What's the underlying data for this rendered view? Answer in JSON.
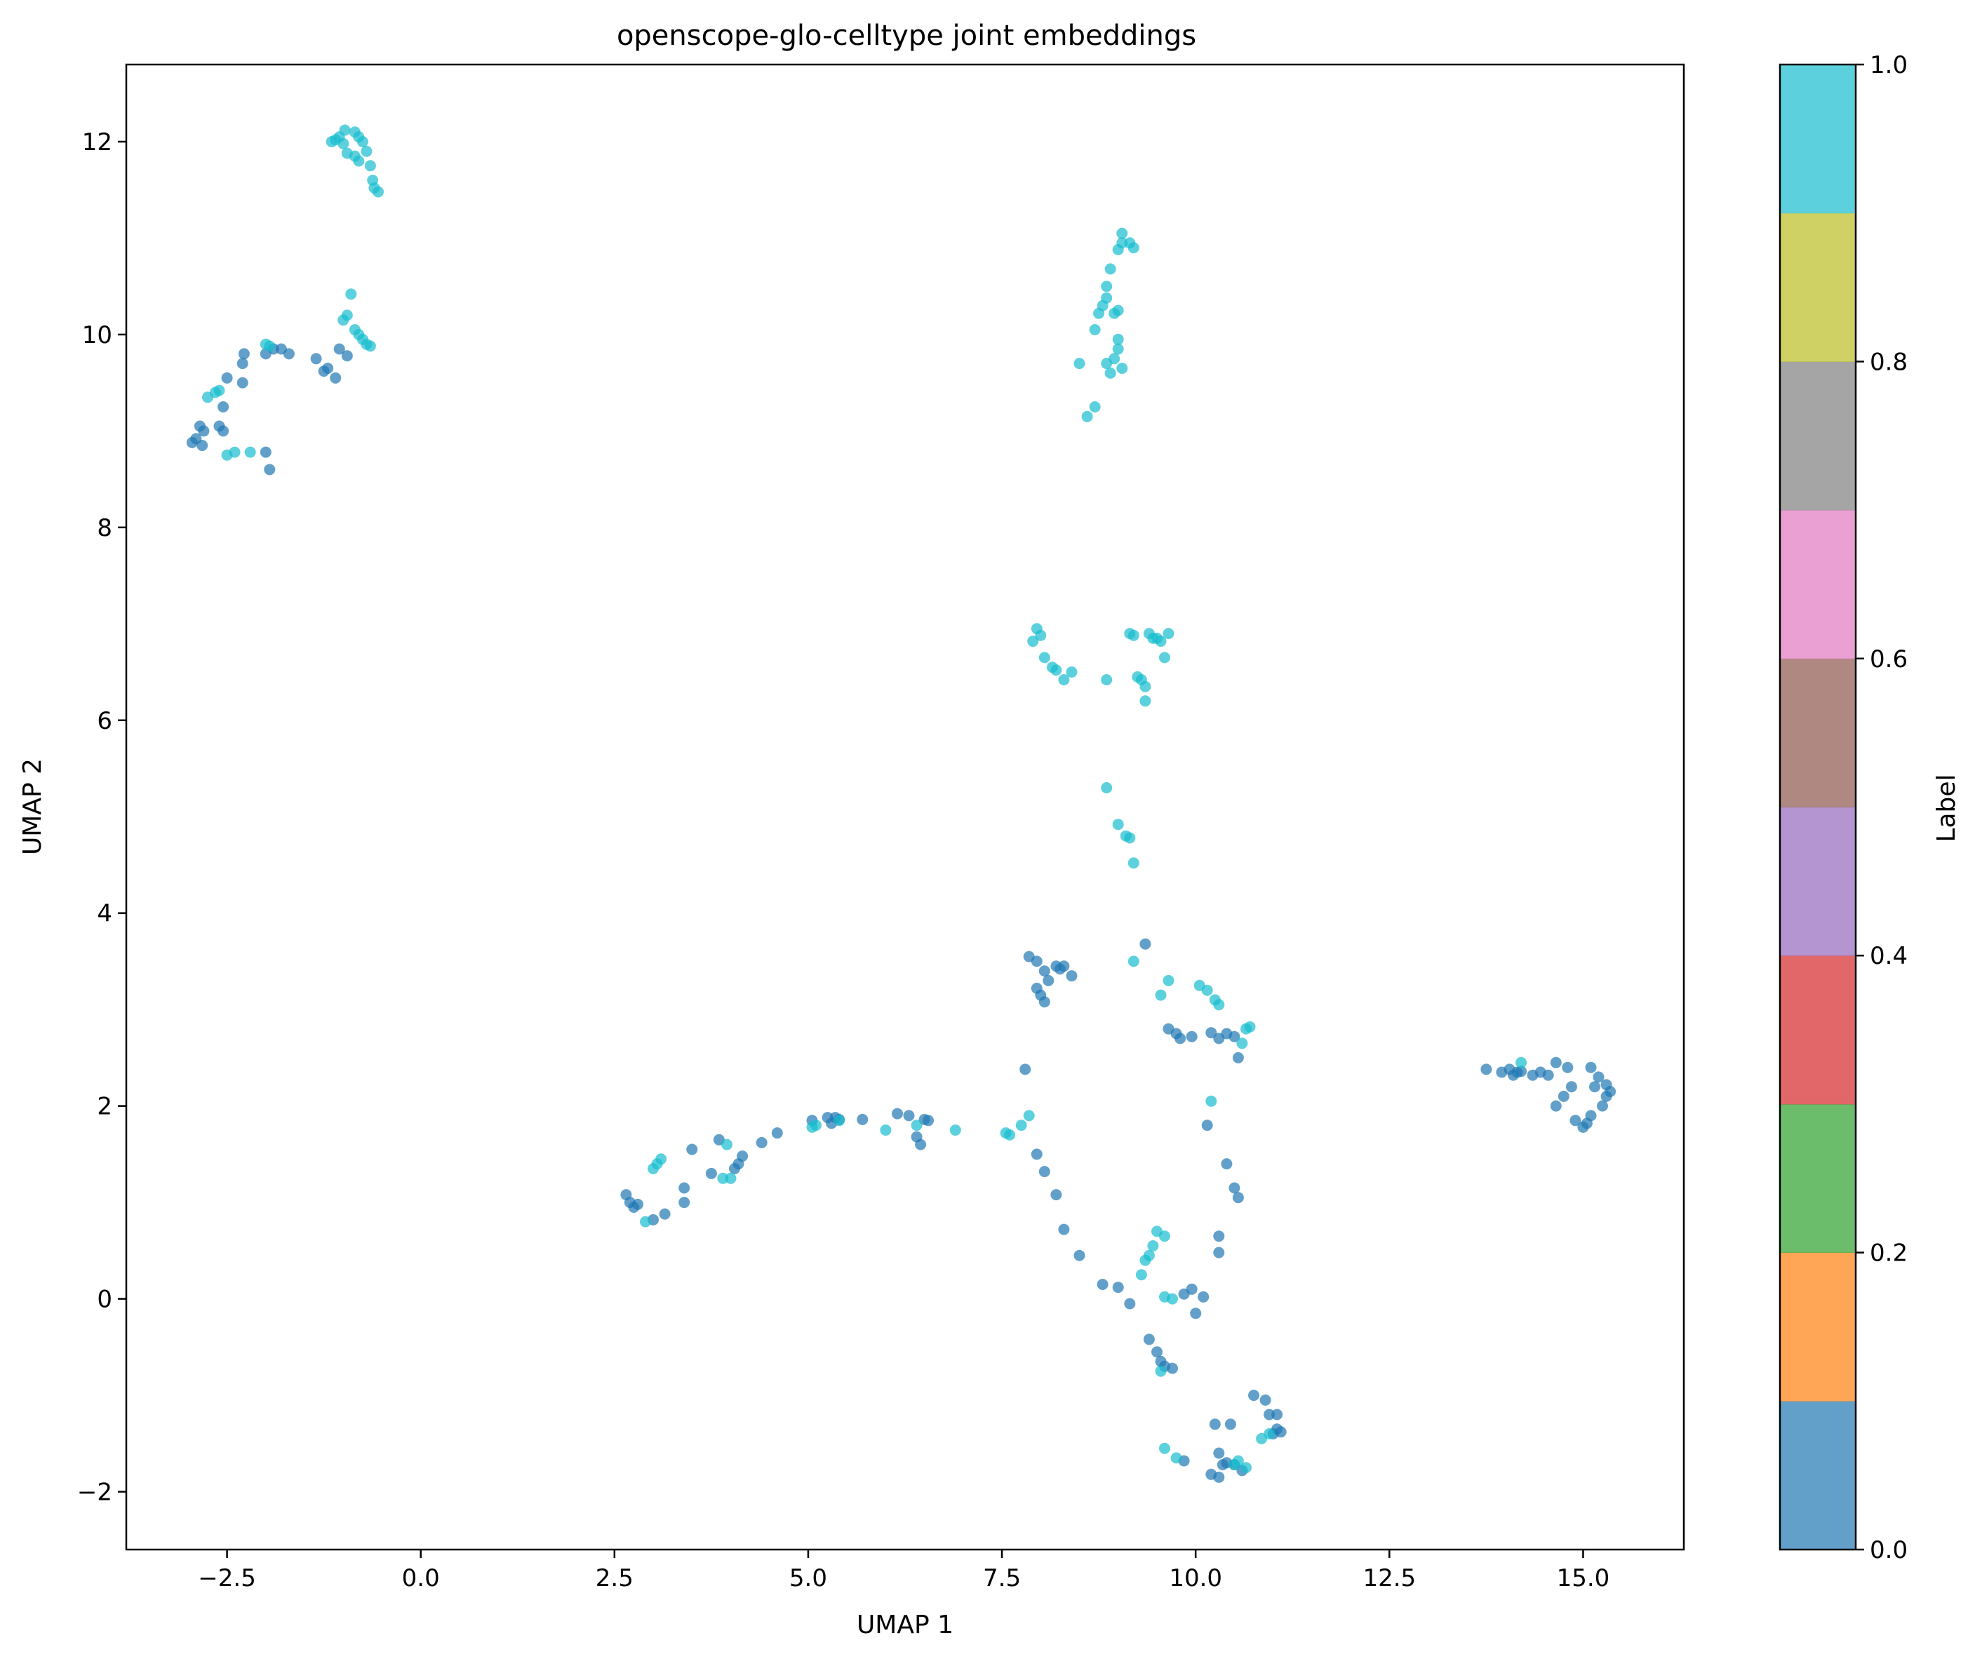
{
  "chart_data": {
    "type": "scatter",
    "title": "openscope-glo-celltype joint embeddings",
    "xlabel": "UMAP 1",
    "ylabel": "UMAP 2",
    "xlim": [
      -3.8,
      16.3
    ],
    "ylim": [
      -2.6,
      12.8
    ],
    "x_ticks": [
      -2.5,
      0.0,
      2.5,
      5.0,
      7.5,
      10.0,
      12.5,
      15.0
    ],
    "x_tick_labels": [
      "−2.5",
      "0.0",
      "2.5",
      "5.0",
      "7.5",
      "10.0",
      "12.5",
      "15.0"
    ],
    "y_ticks": [
      -2,
      0,
      2,
      4,
      6,
      8,
      10,
      12
    ],
    "y_tick_labels": [
      "−2",
      "0",
      "2",
      "4",
      "6",
      "8",
      "10",
      "12"
    ],
    "grid": false,
    "colorbar": {
      "label": "Label",
      "range": [
        0.0,
        1.0
      ],
      "ticks": [
        0.0,
        0.2,
        0.4,
        0.6,
        0.8,
        1.0
      ],
      "tick_labels": [
        "0.0",
        "0.2",
        "0.4",
        "0.6",
        "0.8",
        "1.0"
      ],
      "colors": [
        "#1f77b4",
        "#ff7f0e",
        "#2ca02c",
        "#d62728",
        "#9467bd",
        "#8c564b",
        "#e377c2",
        "#7f7f7f",
        "#bcbd22",
        "#17becf"
      ],
      "alpha": 0.7
    },
    "series": [
      {
        "label_value": 0,
        "color": "#1f77b4",
        "points": [
          [
            -2.95,
            8.88
          ],
          [
            -2.9,
            8.92
          ],
          [
            -2.85,
            9.05
          ],
          [
            -2.82,
            8.85
          ],
          [
            -2.8,
            9.0
          ],
          [
            -2.6,
            9.05
          ],
          [
            -2.55,
            9.0
          ],
          [
            -2.55,
            9.25
          ],
          [
            -2.5,
            9.55
          ],
          [
            -2.3,
            9.5
          ],
          [
            -2.3,
            9.7
          ],
          [
            -2.28,
            9.8
          ],
          [
            -2.0,
            8.78
          ],
          [
            -1.95,
            8.6
          ],
          [
            -2.0,
            9.8
          ],
          [
            -1.9,
            9.85
          ],
          [
            -1.8,
            9.85
          ],
          [
            -1.7,
            9.8
          ],
          [
            -1.35,
            9.75
          ],
          [
            -1.25,
            9.62
          ],
          [
            -1.2,
            9.65
          ],
          [
            -1.1,
            9.55
          ],
          [
            -1.05,
            9.85
          ],
          [
            -0.95,
            9.78
          ],
          [
            2.65,
            1.08
          ],
          [
            2.7,
            1.0
          ],
          [
            2.75,
            0.95
          ],
          [
            2.8,
            0.98
          ],
          [
            3.0,
            0.82
          ],
          [
            3.15,
            0.88
          ],
          [
            3.4,
            1.0
          ],
          [
            3.4,
            1.15
          ],
          [
            3.5,
            1.55
          ],
          [
            3.75,
            1.3
          ],
          [
            3.85,
            1.65
          ],
          [
            4.05,
            1.35
          ],
          [
            4.1,
            1.4
          ],
          [
            4.15,
            1.48
          ],
          [
            4.4,
            1.62
          ],
          [
            4.6,
            1.72
          ],
          [
            5.05,
            1.85
          ],
          [
            5.25,
            1.88
          ],
          [
            5.3,
            1.82
          ],
          [
            5.35,
            1.88
          ],
          [
            5.4,
            1.86
          ],
          [
            5.7,
            1.86
          ],
          [
            6.15,
            1.92
          ],
          [
            6.3,
            1.9
          ],
          [
            6.4,
            1.68
          ],
          [
            6.45,
            1.6
          ],
          [
            6.5,
            1.86
          ],
          [
            6.55,
            1.85
          ],
          [
            7.8,
            2.38
          ],
          [
            7.85,
            3.55
          ],
          [
            7.95,
            3.5
          ],
          [
            7.95,
            3.22
          ],
          [
            8.0,
            3.15
          ],
          [
            8.05,
            3.08
          ],
          [
            8.05,
            3.4
          ],
          [
            8.1,
            3.3
          ],
          [
            8.2,
            3.45
          ],
          [
            8.25,
            3.42
          ],
          [
            8.3,
            3.45
          ],
          [
            8.4,
            3.35
          ],
          [
            9.35,
            3.68
          ],
          [
            7.95,
            1.5
          ],
          [
            8.05,
            1.32
          ],
          [
            8.2,
            1.08
          ],
          [
            8.3,
            0.72
          ],
          [
            8.5,
            0.45
          ],
          [
            8.8,
            0.15
          ],
          [
            9.0,
            0.12
          ],
          [
            9.15,
            -0.05
          ],
          [
            9.85,
            0.05
          ],
          [
            9.95,
            0.1
          ],
          [
            10.0,
            -0.15
          ],
          [
            10.1,
            0.02
          ],
          [
            10.15,
            1.8
          ],
          [
            10.3,
            0.65
          ],
          [
            10.3,
            0.48
          ],
          [
            10.4,
            1.4
          ],
          [
            10.5,
            1.15
          ],
          [
            10.55,
            1.05
          ],
          [
            9.4,
            -0.42
          ],
          [
            9.5,
            -0.55
          ],
          [
            9.55,
            -0.65
          ],
          [
            9.6,
            -0.7
          ],
          [
            9.7,
            -0.72
          ],
          [
            9.65,
            2.8
          ],
          [
            9.75,
            2.75
          ],
          [
            9.8,
            2.7
          ],
          [
            9.95,
            2.72
          ],
          [
            10.2,
            2.76
          ],
          [
            10.3,
            2.7
          ],
          [
            10.4,
            2.75
          ],
          [
            10.5,
            2.72
          ],
          [
            10.55,
            2.5
          ],
          [
            9.85,
            -1.68
          ],
          [
            10.2,
            -1.82
          ],
          [
            10.25,
            -1.3
          ],
          [
            10.3,
            -1.6
          ],
          [
            10.3,
            -1.85
          ],
          [
            10.35,
            -1.72
          ],
          [
            10.4,
            -1.7
          ],
          [
            10.45,
            -1.3
          ],
          [
            10.5,
            -1.72
          ],
          [
            10.6,
            -1.78
          ],
          [
            10.75,
            -1.0
          ],
          [
            10.9,
            -1.05
          ],
          [
            10.95,
            -1.2
          ],
          [
            11.0,
            -1.4
          ],
          [
            11.05,
            -1.2
          ],
          [
            11.05,
            -1.35
          ],
          [
            11.1,
            -1.38
          ],
          [
            13.75,
            2.38
          ],
          [
            13.95,
            2.35
          ],
          [
            14.05,
            2.38
          ],
          [
            14.1,
            2.32
          ],
          [
            14.15,
            2.35
          ],
          [
            14.2,
            2.36
          ],
          [
            14.35,
            2.32
          ],
          [
            14.45,
            2.35
          ],
          [
            14.55,
            2.32
          ],
          [
            14.65,
            2.45
          ],
          [
            14.65,
            2.0
          ],
          [
            14.75,
            2.1
          ],
          [
            14.8,
            2.4
          ],
          [
            14.85,
            2.2
          ],
          [
            14.9,
            1.85
          ],
          [
            15.0,
            1.78
          ],
          [
            15.05,
            1.82
          ],
          [
            15.1,
            2.4
          ],
          [
            15.1,
            1.9
          ],
          [
            15.15,
            2.2
          ],
          [
            15.2,
            2.3
          ],
          [
            15.25,
            2.0
          ],
          [
            15.3,
            2.1
          ],
          [
            15.3,
            2.22
          ],
          [
            15.35,
            2.15
          ]
        ]
      },
      {
        "label_value": 1,
        "color": "#17becf",
        "points": [
          [
            -1.15,
            12.0
          ],
          [
            -1.1,
            12.02
          ],
          [
            -1.05,
            12.05
          ],
          [
            -1.0,
            11.98
          ],
          [
            -0.98,
            12.12
          ],
          [
            -0.95,
            11.88
          ],
          [
            -0.85,
            11.85
          ],
          [
            -0.85,
            12.1
          ],
          [
            -0.8,
            12.05
          ],
          [
            -0.8,
            11.8
          ],
          [
            -0.75,
            12.0
          ],
          [
            -0.7,
            11.9
          ],
          [
            -0.65,
            11.75
          ],
          [
            -0.62,
            11.6
          ],
          [
            -0.6,
            11.52
          ],
          [
            -0.55,
            11.48
          ],
          [
            -2.75,
            9.35
          ],
          [
            -2.65,
            9.4
          ],
          [
            -2.6,
            9.42
          ],
          [
            -2.5,
            8.75
          ],
          [
            -2.4,
            8.78
          ],
          [
            -2.2,
            8.78
          ],
          [
            -2.0,
            9.9
          ],
          [
            -1.95,
            9.88
          ],
          [
            -1.0,
            10.15
          ],
          [
            -0.95,
            10.2
          ],
          [
            -0.9,
            10.42
          ],
          [
            -0.85,
            10.05
          ],
          [
            -0.8,
            10.0
          ],
          [
            -0.75,
            9.95
          ],
          [
            -0.7,
            9.9
          ],
          [
            -0.65,
            9.88
          ],
          [
            8.5,
            9.7
          ],
          [
            8.6,
            9.15
          ],
          [
            8.7,
            9.25
          ],
          [
            8.7,
            10.05
          ],
          [
            8.75,
            10.22
          ],
          [
            8.8,
            10.3
          ],
          [
            8.85,
            10.38
          ],
          [
            8.85,
            10.5
          ],
          [
            8.85,
            9.7
          ],
          [
            8.9,
            9.6
          ],
          [
            8.9,
            10.68
          ],
          [
            8.95,
            9.75
          ],
          [
            8.95,
            10.22
          ],
          [
            9.0,
            9.85
          ],
          [
            9.0,
            9.95
          ],
          [
            9.0,
            10.25
          ],
          [
            9.05,
            9.65
          ],
          [
            9.0,
            10.88
          ],
          [
            9.05,
            10.95
          ],
          [
            9.05,
            11.05
          ],
          [
            9.15,
            10.95
          ],
          [
            9.2,
            10.9
          ],
          [
            7.9,
            6.82
          ],
          [
            7.95,
            6.95
          ],
          [
            8.0,
            6.88
          ],
          [
            8.05,
            6.65
          ],
          [
            8.15,
            6.55
          ],
          [
            8.2,
            6.52
          ],
          [
            8.3,
            6.42
          ],
          [
            8.4,
            6.5
          ],
          [
            8.85,
            6.42
          ],
          [
            9.15,
            6.9
          ],
          [
            9.2,
            6.88
          ],
          [
            9.25,
            6.45
          ],
          [
            9.3,
            6.42
          ],
          [
            9.35,
            6.35
          ],
          [
            9.35,
            6.2
          ],
          [
            9.4,
            6.9
          ],
          [
            9.45,
            6.85
          ],
          [
            9.5,
            6.85
          ],
          [
            9.55,
            6.82
          ],
          [
            9.6,
            6.65
          ],
          [
            9.65,
            6.9
          ],
          [
            8.85,
            5.3
          ],
          [
            9.0,
            4.92
          ],
          [
            9.1,
            4.8
          ],
          [
            9.15,
            4.78
          ],
          [
            9.2,
            4.52
          ],
          [
            9.2,
            3.5
          ],
          [
            9.55,
            3.15
          ],
          [
            9.65,
            3.3
          ],
          [
            10.05,
            3.25
          ],
          [
            10.15,
            3.2
          ],
          [
            10.25,
            3.1
          ],
          [
            10.3,
            3.05
          ],
          [
            10.6,
            2.65
          ],
          [
            10.65,
            2.8
          ],
          [
            10.7,
            2.82
          ],
          [
            5.05,
            1.78
          ],
          [
            5.1,
            1.8
          ],
          [
            5.4,
            1.85
          ],
          [
            6.0,
            1.75
          ],
          [
            6.4,
            1.8
          ],
          [
            6.9,
            1.75
          ],
          [
            7.55,
            1.72
          ],
          [
            7.6,
            1.7
          ],
          [
            7.75,
            1.8
          ],
          [
            7.85,
            1.9
          ],
          [
            2.9,
            0.8
          ],
          [
            3.0,
            1.35
          ],
          [
            3.05,
            1.4
          ],
          [
            3.1,
            1.45
          ],
          [
            3.95,
            1.6
          ],
          [
            3.9,
            1.25
          ],
          [
            4.0,
            1.25
          ],
          [
            10.2,
            2.05
          ],
          [
            9.3,
            0.25
          ],
          [
            9.35,
            0.4
          ],
          [
            9.4,
            0.45
          ],
          [
            9.45,
            0.55
          ],
          [
            9.5,
            0.7
          ],
          [
            9.6,
            0.65
          ],
          [
            9.6,
            0.02
          ],
          [
            9.7,
            0.0
          ],
          [
            9.55,
            -0.75
          ],
          [
            9.6,
            -1.55
          ],
          [
            9.75,
            -1.65
          ],
          [
            10.5,
            -1.72
          ],
          [
            10.55,
            -1.68
          ],
          [
            10.65,
            -1.75
          ],
          [
            10.85,
            -1.45
          ],
          [
            10.95,
            -1.4
          ],
          [
            14.2,
            2.45
          ]
        ]
      }
    ]
  }
}
